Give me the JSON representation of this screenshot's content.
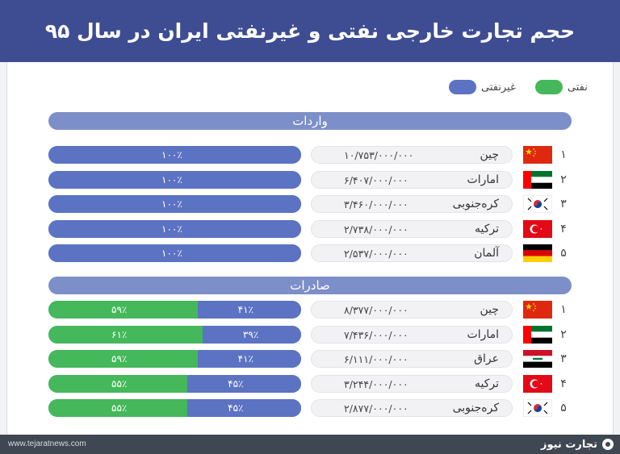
{
  "header": {
    "title": "حجم تجارت خارجی نفتی و غیرنفتی ایران در سال ۹۵"
  },
  "legend": {
    "oil_label": "نفتی",
    "oil_color": "#44b85a",
    "nonoil_label": "غیرنفتی",
    "nonoil_color": "#5b73c2"
  },
  "chart_data": [
    {
      "type": "bar",
      "section": "واردات",
      "rows": [
        {
          "rank": "۱",
          "country": "چین",
          "flag": "china-flag",
          "value_label": "۱۰/۷۵۳/۰۰۰/۰۰۰",
          "value": 10753000000,
          "oil_pct": 0,
          "nonoil_pct": 100,
          "oil_label": "",
          "nonoil_label": "۱۰۰٪"
        },
        {
          "rank": "۲",
          "country": "امارات",
          "flag": "uae-flag",
          "value_label": "۶/۴۰۷/۰۰۰/۰۰۰",
          "value": 6407000000,
          "oil_pct": 0,
          "nonoil_pct": 100,
          "oil_label": "",
          "nonoil_label": "۱۰۰٪"
        },
        {
          "rank": "۳",
          "country": "کره‌جنوبی",
          "flag": "south-korea-flag",
          "value_label": "۳/۴۶۰/۰۰۰/۰۰۰",
          "value": 3460000000,
          "oil_pct": 0,
          "nonoil_pct": 100,
          "oil_label": "",
          "nonoil_label": "۱۰۰٪"
        },
        {
          "rank": "۴",
          "country": "ترکیه",
          "flag": "turkey-flag",
          "value_label": "۲/۷۳۸/۰۰۰/۰۰۰",
          "value": 2738000000,
          "oil_pct": 0,
          "nonoil_pct": 100,
          "oil_label": "",
          "nonoil_label": "۱۰۰٪"
        },
        {
          "rank": "۵",
          "country": "آلمان",
          "flag": "germany-flag",
          "value_label": "۲/۵۳۷/۰۰۰/۰۰۰",
          "value": 2537000000,
          "oil_pct": 0,
          "nonoil_pct": 100,
          "oil_label": "",
          "nonoil_label": "۱۰۰٪"
        }
      ]
    },
    {
      "type": "bar",
      "section": "صادرات",
      "rows": [
        {
          "rank": "۱",
          "country": "چین",
          "flag": "china-flag",
          "value_label": "۸/۳۷۷/۰۰۰/۰۰۰",
          "value": 8377000000,
          "oil_pct": 59,
          "nonoil_pct": 41,
          "oil_label": "۵۹٪",
          "nonoil_label": "۴۱٪"
        },
        {
          "rank": "۲",
          "country": "امارات",
          "flag": "uae-flag",
          "value_label": "۷/۴۳۶/۰۰۰/۰۰۰",
          "value": 7436000000,
          "oil_pct": 61,
          "nonoil_pct": 39,
          "oil_label": "۶۱٪",
          "nonoil_label": "۳۹٪"
        },
        {
          "rank": "۳",
          "country": "عراق",
          "flag": "iraq-flag",
          "value_label": "۶/۱۱۱/۰۰۰/۰۰۰",
          "value": 6111000000,
          "oil_pct": 59,
          "nonoil_pct": 41,
          "oil_label": "۵۹٪",
          "nonoil_label": "۴۱٪"
        },
        {
          "rank": "۴",
          "country": "ترکیه",
          "flag": "turkey-flag",
          "value_label": "۳/۲۴۴/۰۰۰/۰۰۰",
          "value": 3244000000,
          "oil_pct": 55,
          "nonoil_pct": 45,
          "oil_label": "۵۵٪",
          "nonoil_label": "۴۵٪"
        },
        {
          "rank": "۵",
          "country": "کره‌جنوبی",
          "flag": "south-korea-flag",
          "value_label": "۲/۸۷۷/۰۰۰/۰۰۰",
          "value": 2877000000,
          "oil_pct": 55,
          "nonoil_pct": 45,
          "oil_label": "۵۵٪",
          "nonoil_label": "۴۵٪"
        }
      ]
    }
  ],
  "footer": {
    "url": "www.tejaratnews.com",
    "brand": "تجارت نیوز"
  }
}
